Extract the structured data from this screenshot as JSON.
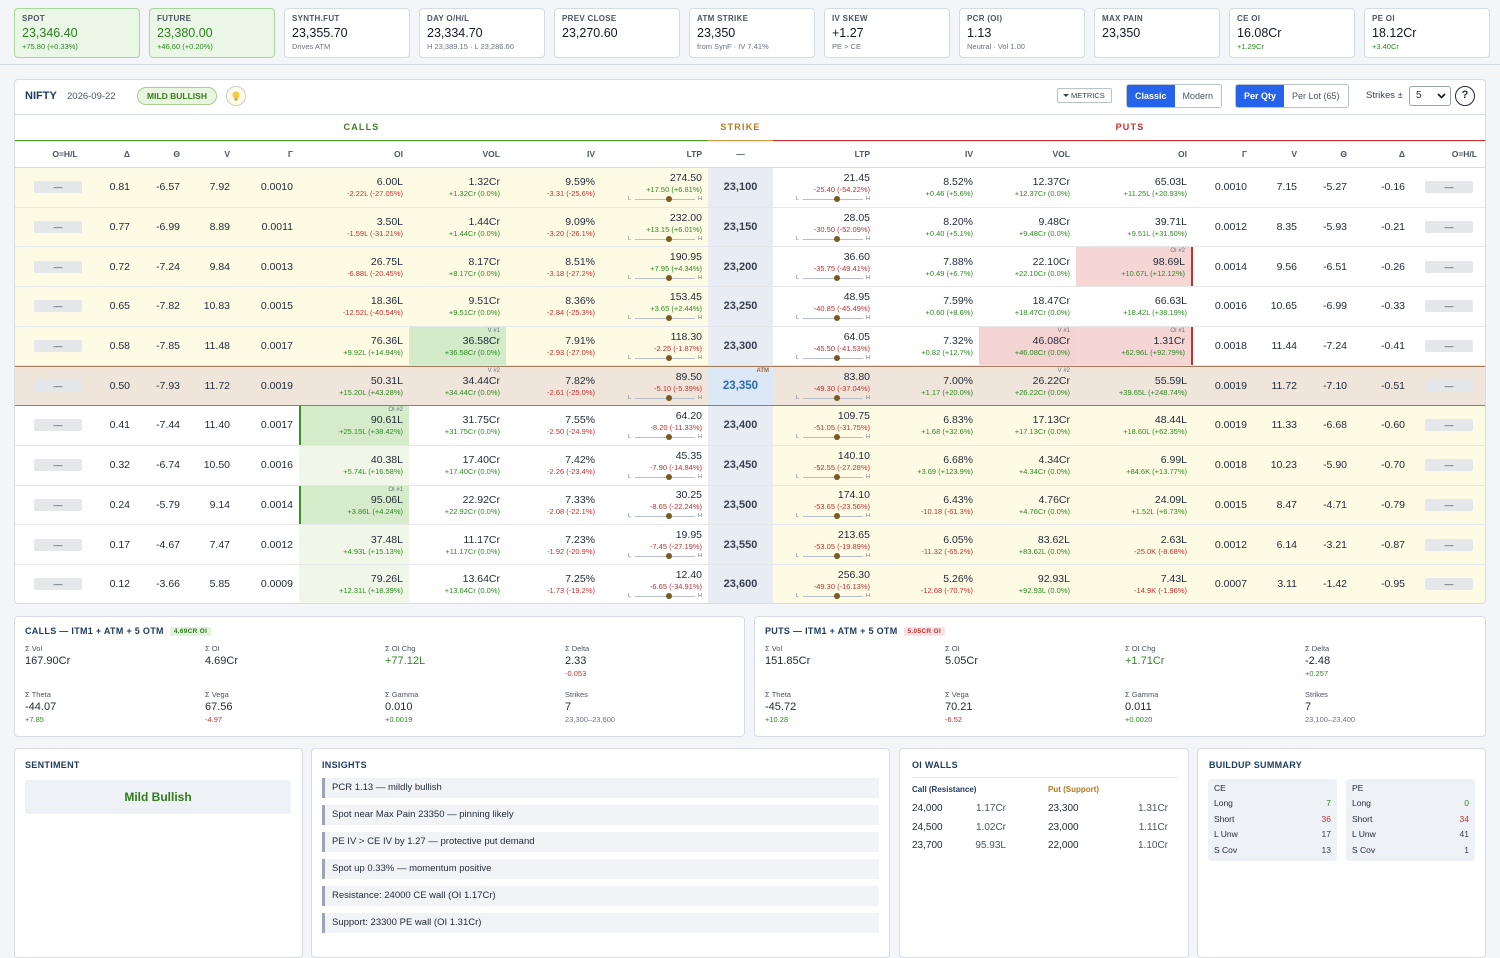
{
  "cards": [
    {
      "label": "SPOT",
      "value": "23,346.40",
      "sub": "+75.80 (+0.33%)",
      "highlight": true
    },
    {
      "label": "FUTURE",
      "value": "23,380.00",
      "sub": "+46.60 (+0.20%)",
      "highlight": true
    },
    {
      "label": "SYNTH.FUT",
      "value": "23,355.70",
      "sub": "Drives ATM"
    },
    {
      "label": "DAY O/H/L",
      "value": "23,334.70",
      "sub": "H 23,389.15 · L 23,286.60"
    },
    {
      "label": "PREV CLOSE",
      "value": "23,270.60"
    },
    {
      "label": "ATM STRIKE",
      "value": "23,350",
      "sub": "from SynF · IV 7.41%"
    },
    {
      "label": "IV SKEW",
      "value": "+1.27",
      "sub": "PE > CE"
    },
    {
      "label": "PCR (OI)",
      "value": "1.13",
      "sub": "Neutral · Vol 1.00"
    },
    {
      "label": "MAX PAIN",
      "value": "23,350"
    },
    {
      "label": "CE OI",
      "value": "16.08Cr",
      "sub": "+1.29Cr"
    },
    {
      "label": "PE OI",
      "value": "18.12Cr",
      "sub": "+3.40Cr"
    }
  ],
  "toolbar": {
    "symbol": "NIFTY",
    "date": "2026-09-22",
    "bias": "MILD BULLISH",
    "metrics": "METRICS",
    "views": [
      "Classic",
      "Modern"
    ],
    "units": [
      "Per Qty",
      "Per Lot (65)"
    ],
    "strikes_label": "Strikes ±",
    "strikes_value": "5",
    "help": "?"
  },
  "chain": {
    "groups": {
      "calls": "CALLS",
      "strike": "STRIKE",
      "puts": "PUTS"
    },
    "columns": {
      "call": [
        "O=H/L",
        "Δ",
        "Θ",
        "V",
        "Γ",
        "OI",
        "VOL",
        "IV",
        "LTP"
      ],
      "strike": "—",
      "put": [
        "LTP",
        "IV",
        "VOL",
        "OI",
        "Γ",
        "V",
        "Θ",
        "Δ",
        "O=H/L"
      ]
    },
    "slider": [
      "L",
      "H"
    ],
    "atm_tag": "ATM",
    "rows": [
      {
        "strike": "23,100",
        "call": {
          "ohl": "—",
          "delta": "0.81",
          "theta": "-6.57",
          "vega": "7.92",
          "gamma": "0.0010",
          "oi": "6.00L",
          "oi_chg": "-2.22L (-27.05%)",
          "vol": "1.32Cr",
          "vol_chg": "+1.32Cr (0.0%)",
          "iv": "9.59%",
          "iv_chg": "-3.31 (-25.6%)",
          "ltp": "274.50",
          "ltp_chg": "+17.50 (+6.81%)"
        },
        "put": {
          "ltp": "21.45",
          "ltp_chg": "-25.40 (-54.22%)",
          "iv": "8.52%",
          "iv_chg": "+0.46 (+5.6%)",
          "vol": "12.37Cr",
          "vol_chg": "+12.37Cr (0.0%)",
          "oi": "65.03L",
          "oi_chg": "+11.25L (+20.93%)",
          "gamma": "0.0010",
          "vega": "7.15",
          "theta": "-5.27",
          "delta": "-0.16",
          "ohl": "—"
        }
      },
      {
        "strike": "23,150",
        "call": {
          "ohl": "—",
          "delta": "0.77",
          "theta": "-6.99",
          "vega": "8.89",
          "gamma": "0.0011",
          "oi": "3.50L",
          "oi_chg": "-1.59L (-31.21%)",
          "vol": "1.44Cr",
          "vol_chg": "+1.44Cr (0.0%)",
          "iv": "9.09%",
          "iv_chg": "-3.20 (-26.1%)",
          "ltp": "232.00",
          "ltp_chg": "+13.15 (+6.01%)"
        },
        "put": {
          "ltp": "28.05",
          "ltp_chg": "-30.50 (-52.09%)",
          "iv": "8.20%",
          "iv_chg": "+0.40 (+5.1%)",
          "vol": "9.48Cr",
          "vol_chg": "+9.48Cr (0.0%)",
          "oi": "39.71L",
          "oi_chg": "+9.51L (+31.50%)",
          "gamma": "0.0012",
          "vega": "8.35",
          "theta": "-5.93",
          "delta": "-0.21",
          "ohl": "—"
        }
      },
      {
        "strike": "23,200",
        "call": {
          "ohl": "—",
          "delta": "0.72",
          "theta": "-7.24",
          "vega": "9.84",
          "gamma": "0.0013",
          "oi": "26.75L",
          "oi_chg": "-6.88L (-20.45%)",
          "vol": "8.17Cr",
          "vol_chg": "+8.17Cr (0.0%)",
          "iv": "8.51%",
          "iv_chg": "-3.18 (-27.2%)",
          "ltp": "190.95",
          "ltp_chg": "+7.95 (+4.34%)"
        },
        "put": {
          "ltp": "36.60",
          "ltp_chg": "-35.75 (-49.41%)",
          "iv": "7.88%",
          "iv_chg": "+0.49 (+6.7%)",
          "vol": "22.10Cr",
          "vol_chg": "+22.10Cr (0.0%)",
          "oi": "98.69L",
          "oi_chg": "+10.67L (+12.12%)",
          "oi_tag": "OI #2",
          "gamma": "0.0014",
          "vega": "9.56",
          "theta": "-6.51",
          "delta": "-0.26",
          "ohl": "—"
        }
      },
      {
        "strike": "23,250",
        "call": {
          "ohl": "—",
          "delta": "0.65",
          "theta": "-7.82",
          "vega": "10.83",
          "gamma": "0.0015",
          "oi": "18.36L",
          "oi_chg": "-12.52L (-40.54%)",
          "vol": "9.51Cr",
          "vol_chg": "+9.51Cr (0.0%)",
          "iv": "8.36%",
          "iv_chg": "-2.84 (-25.3%)",
          "ltp": "153.45",
          "ltp_chg": "+3.65 (+2.44%)"
        },
        "put": {
          "ltp": "48.95",
          "ltp_chg": "-40.85 (-45.49%)",
          "iv": "7.59%",
          "iv_chg": "+0.60 (+8.6%)",
          "vol": "18.47Cr",
          "vol_chg": "+18.47Cr (0.0%)",
          "oi": "66.63L",
          "oi_chg": "+18.42L (+38.19%)",
          "gamma": "0.0016",
          "vega": "10.65",
          "theta": "-6.99",
          "delta": "-0.33",
          "ohl": "—"
        }
      },
      {
        "strike": "23,300",
        "call": {
          "ohl": "—",
          "delta": "0.58",
          "theta": "-7.85",
          "vega": "11.48",
          "gamma": "0.0017",
          "oi": "76.36L",
          "oi_chg": "+9.92L (+14.94%)",
          "vol": "36.58Cr",
          "vol_chg": "+36.58Cr (0.0%)",
          "vol_tag": "V #1",
          "iv": "7.91%",
          "iv_chg": "-2.93 (-27.0%)",
          "ltp": "118.30",
          "ltp_chg": "-2.25 (-1.87%)"
        },
        "put": {
          "ltp": "64.05",
          "ltp_chg": "-45.50 (-41.53%)",
          "iv": "7.32%",
          "iv_chg": "+0.82 (+12.7%)",
          "vol": "46.08Cr",
          "vol_chg": "+46.08Cr (0.0%)",
          "vol_tag": "V #1",
          "oi": "1.31Cr",
          "oi_chg": "+62.96L (+92.79%)",
          "oi_tag": "OI #1",
          "gamma": "0.0018",
          "vega": "11.44",
          "theta": "-7.24",
          "delta": "-0.41",
          "ohl": "—"
        }
      },
      {
        "strike": "23,350",
        "atm": true,
        "call": {
          "ohl": "—",
          "delta": "0.50",
          "theta": "-7.93",
          "vega": "11.72",
          "gamma": "0.0019",
          "oi": "50.31L",
          "oi_chg": "+15.20L (+43.28%)",
          "vol": "34.44Cr",
          "vol_chg": "+34.44Cr (0.0%)",
          "vol_tag": "V #2",
          "iv": "7.82%",
          "iv_chg": "-2.61 (-25.0%)",
          "ltp": "89.50",
          "ltp_chg": "-5.10 (-5.39%)"
        },
        "put": {
          "ltp": "83.80",
          "ltp_chg": "-49.30 (-37.04%)",
          "iv": "7.00%",
          "iv_chg": "+1.17 (+20.0%)",
          "vol": "26.22Cr",
          "vol_chg": "+26.22Cr (0.0%)",
          "vol_tag": "V #2",
          "oi": "55.59L",
          "oi_chg": "+39.65L (+248.74%)",
          "gamma": "0.0019",
          "vega": "11.72",
          "theta": "-7.10",
          "delta": "-0.51",
          "ohl": "—"
        }
      },
      {
        "strike": "23,400",
        "call": {
          "ohl": "—",
          "delta": "0.41",
          "theta": "-7.44",
          "vega": "11.40",
          "gamma": "0.0017",
          "oi": "90.61L",
          "oi_chg": "+25.15L (+38.42%)",
          "oi_tag": "OI #2",
          "vol": "31.75Cr",
          "vol_chg": "+31.75Cr (0.0%)",
          "iv": "7.55%",
          "iv_chg": "-2.50 (-24.9%)",
          "ltp": "64.20",
          "ltp_chg": "-8.20 (-11.33%)"
        },
        "put": {
          "ltp": "109.75",
          "ltp_chg": "-51.05 (-31.75%)",
          "iv": "6.83%",
          "iv_chg": "+1.68 (+32.6%)",
          "vol": "17.13Cr",
          "vol_chg": "+17.13Cr (0.0%)",
          "oi": "48.44L",
          "oi_chg": "+18.60L (+62.35%)",
          "gamma": "0.0019",
          "vega": "11.33",
          "theta": "-6.68",
          "delta": "-0.60",
          "ohl": "—"
        }
      },
      {
        "strike": "23,450",
        "call": {
          "ohl": "—",
          "delta": "0.32",
          "theta": "-6.74",
          "vega": "10.50",
          "gamma": "0.0016",
          "oi": "40.38L",
          "oi_chg": "+5.74L (+16.58%)",
          "vol": "17.40Cr",
          "vol_chg": "+17.40Cr (0.0%)",
          "iv": "7.42%",
          "iv_chg": "-2.26 (-23.4%)",
          "ltp": "45.35",
          "ltp_chg": "-7.90 (-14.84%)"
        },
        "put": {
          "ltp": "140.10",
          "ltp_chg": "-52.55 (-27.28%)",
          "iv": "6.68%",
          "iv_chg": "+3.69 (+123.9%)",
          "vol": "4.34Cr",
          "vol_chg": "+4.34Cr (0.0%)",
          "oi": "6.99L",
          "oi_chg": "+84.6K (+13.77%)",
          "gamma": "0.0018",
          "vega": "10.23",
          "theta": "-5.90",
          "delta": "-0.70",
          "ohl": "—"
        }
      },
      {
        "strike": "23,500",
        "call": {
          "ohl": "—",
          "delta": "0.24",
          "theta": "-5.79",
          "vega": "9.14",
          "gamma": "0.0014",
          "oi": "95.06L",
          "oi_chg": "+3.86L (+4.24%)",
          "oi_tag": "OI #1",
          "vol": "22.92Cr",
          "vol_chg": "+22.92Cr (0.0%)",
          "iv": "7.33%",
          "iv_chg": "-2.08 (-22.1%)",
          "ltp": "30.25",
          "ltp_chg": "-8.65 (-22.24%)"
        },
        "put": {
          "ltp": "174.10",
          "ltp_chg": "-53.65 (-23.56%)",
          "iv": "6.43%",
          "iv_chg": "-10.18 (-61.3%)",
          "vol": "4.76Cr",
          "vol_chg": "+4.76Cr (0.0%)",
          "oi": "24.09L",
          "oi_chg": "+1.52L (+6.73%)",
          "gamma": "0.0015",
          "vega": "8.47",
          "theta": "-4.71",
          "delta": "-0.79",
          "ohl": "—"
        }
      },
      {
        "strike": "23,550",
        "call": {
          "ohl": "—",
          "delta": "0.17",
          "theta": "-4.67",
          "vega": "7.47",
          "gamma": "0.0012",
          "oi": "37.48L",
          "oi_chg": "+4.93L (+15.13%)",
          "vol": "11.17Cr",
          "vol_chg": "+11.17Cr (0.0%)",
          "iv": "7.23%",
          "iv_chg": "-1.92 (-20.9%)",
          "ltp": "19.95",
          "ltp_chg": "-7.45 (-27.19%)"
        },
        "put": {
          "ltp": "213.65",
          "ltp_chg": "-53.05 (-19.89%)",
          "iv": "6.05%",
          "iv_chg": "-11.32 (-65.2%)",
          "vol": "83.62L",
          "vol_chg": "+83.62L (0.0%)",
          "oi": "2.63L",
          "oi_chg": "-25.0K (-8.68%)",
          "gamma": "0.0012",
          "vega": "6.14",
          "theta": "-3.21",
          "delta": "-0.87",
          "ohl": "—"
        }
      },
      {
        "strike": "23,600",
        "call": {
          "ohl": "—",
          "delta": "0.12",
          "theta": "-3.66",
          "vega": "5.85",
          "gamma": "0.0009",
          "oi": "79.26L",
          "oi_chg": "+12.31L (+18.39%)",
          "vol": "13.64Cr",
          "vol_chg": "+13.64Cr (0.0%)",
          "iv": "7.25%",
          "iv_chg": "-1.73 (-19.2%)",
          "ltp": "12.40",
          "ltp_chg": "-6.65 (-34.91%)"
        },
        "put": {
          "ltp": "256.30",
          "ltp_chg": "-49.30 (-16.13%)",
          "iv": "5.26%",
          "iv_chg": "-12.68 (-70.7%)",
          "vol": "92.93L",
          "vol_chg": "+92.93L (0.0%)",
          "oi": "7.43L",
          "oi_chg": "-14.9K (-1.96%)",
          "gamma": "0.0007",
          "vega": "3.11",
          "theta": "-1.42",
          "delta": "-0.95",
          "ohl": "—"
        }
      }
    ]
  },
  "summary": [
    {
      "title": "CALLS — ITM1 + ATM + 5 OTM",
      "badge": "4.69CR OI",
      "stats": [
        {
          "label": "Σ Vol",
          "value": "167.90Cr"
        },
        {
          "label": "Σ OI",
          "value": "4.69Cr"
        },
        {
          "label": "Σ OI Chg",
          "value": "+77.12L"
        },
        {
          "label": "Σ Delta",
          "value": "2.33",
          "sub": "-0.053"
        },
        {
          "label": "Σ Theta",
          "value": "-44.07",
          "sub": "+7.85"
        },
        {
          "label": "Σ Vega",
          "value": "67.56",
          "sub": "-4.97"
        },
        {
          "label": "Σ Gamma",
          "value": "0.010",
          "sub": "+0.0019"
        },
        {
          "label": "Strikes",
          "value": "7",
          "sub": "23,300–23,600"
        }
      ]
    },
    {
      "title": "PUTS — ITM1 + ATM + 5 OTM",
      "badge": "5.05CR OI",
      "stats": [
        {
          "label": "Σ Vol",
          "value": "151.85Cr"
        },
        {
          "label": "Σ OI",
          "value": "5.05Cr"
        },
        {
          "label": "Σ OI Chg",
          "value": "+1.71Cr"
        },
        {
          "label": "Σ Delta",
          "value": "-2.48",
          "sub": "+0.257"
        },
        {
          "label": "Σ Theta",
          "value": "-45.72",
          "sub": "+10.28"
        },
        {
          "label": "Σ Vega",
          "value": "70.21",
          "sub": "-6.52"
        },
        {
          "label": "Σ Gamma",
          "value": "0.011",
          "sub": "+0.0020"
        },
        {
          "label": "Strikes",
          "value": "7",
          "sub": "23,100–23,400"
        }
      ]
    }
  ],
  "sentiment": {
    "title": "SENTIMENT",
    "value": "Mild Bullish"
  },
  "insights": {
    "title": "INSIGHTS",
    "items": [
      "PCR 1.13 — mildly bullish",
      "Spot near Max Pain 23350 — pinning likely",
      "PE IV > CE IV by 1.27 — protective put demand",
      "Spot up 0.33% — momentum positive",
      "Resistance: 24000 CE wall (OI 1.17Cr)",
      "Support: 23300 PE wall (OI 1.31Cr)"
    ]
  },
  "oi_walls": {
    "title": "OI WALLS",
    "headers": [
      "Call (Resistance)",
      "Put (Support)"
    ],
    "rows": [
      [
        "24,000",
        "1.17Cr",
        "23,300",
        "1.31Cr"
      ],
      [
        "24,500",
        "1.02Cr",
        "23,000",
        "1.11Cr"
      ],
      [
        "23,700",
        "95.93L",
        "22,000",
        "1.10Cr"
      ]
    ]
  },
  "buildup": {
    "title": "BUILDUP SUMMARY",
    "groups": [
      {
        "name": "CE",
        "rows": [
          [
            "Long",
            "7"
          ],
          [
            "Short",
            "36"
          ],
          [
            "L Unw",
            "17"
          ],
          [
            "S Cov",
            "13"
          ]
        ]
      },
      {
        "name": "PE",
        "rows": [
          [
            "Long",
            "0"
          ],
          [
            "Short",
            "34"
          ],
          [
            "L Unw",
            "41"
          ],
          [
            "S Cov",
            "1"
          ]
        ]
      }
    ]
  }
}
